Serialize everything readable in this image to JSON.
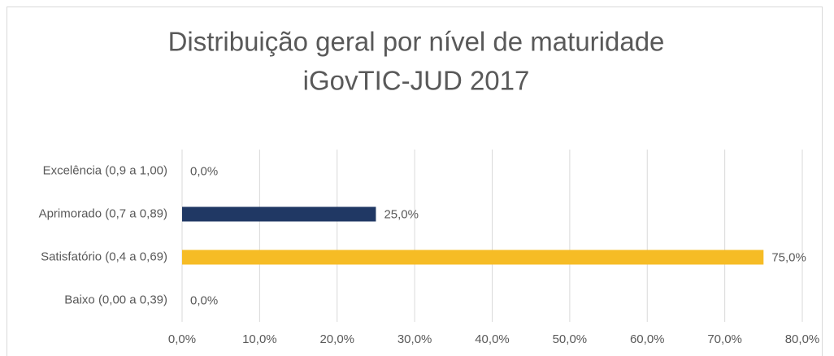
{
  "chart_data": {
    "type": "barh",
    "title": [
      "Distribuição geral por nível de maturidade",
      "iGovTIC-JUD 2017"
    ],
    "categories": [
      "Excelência (0,9 a 1,00)",
      "Aprimorado (0,7 a 0,89)",
      "Satisfatório (0,4 a 0,69)",
      "Baixo (0,00 a 0,39)"
    ],
    "values": [
      0,
      25,
      75,
      0
    ],
    "value_labels": [
      "0,0%",
      "25,0%",
      "75,0%",
      "0,0%"
    ],
    "colors": [
      null,
      "#203864",
      "#f6bc25",
      null
    ],
    "xlim": [
      0,
      80
    ],
    "xticks": [
      {
        "value": 0,
        "label": "0,0%"
      },
      {
        "value": 10,
        "label": "10,0%"
      },
      {
        "value": 20,
        "label": "20,0%"
      },
      {
        "value": 30,
        "label": "30,0%"
      },
      {
        "value": 40,
        "label": "40,0%"
      },
      {
        "value": 50,
        "label": "50,0%"
      },
      {
        "value": 60,
        "label": "60,0%"
      },
      {
        "value": 70,
        "label": "70,0%"
      },
      {
        "value": 80,
        "label": "80,0%"
      }
    ],
    "grid": true
  }
}
